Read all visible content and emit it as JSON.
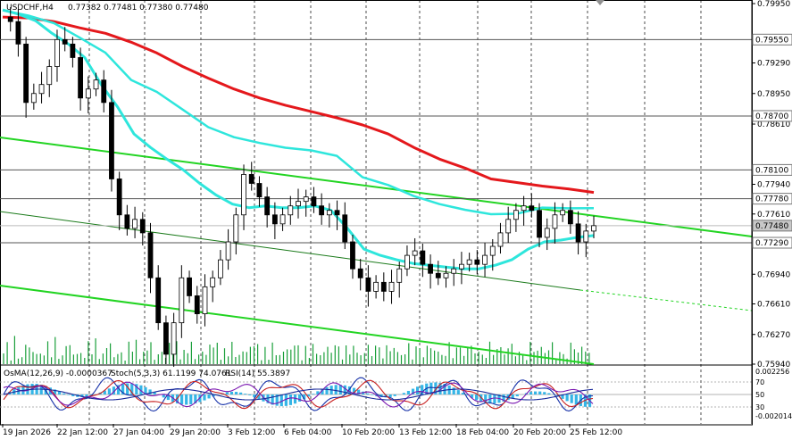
{
  "header": {
    "symbol_label": "USDCHF,H4",
    "ohlc_label": "0.77382 0.77481 0.77380 0.77480"
  },
  "indicator_header": {
    "osma_label": "OsMA(12,26,9) -0.0000367",
    "stoch_label": "Stoch(5,3,3) 61.1199 74.0761",
    "rsi_label": "RSI(14) 55.3897"
  },
  "colors": {
    "candle": "#000000",
    "ma_red": "#e4181c",
    "ma_teal": "#2ee6dc",
    "channel_green": "#22d422",
    "level_line": "#555555",
    "volume": "#1a9f3a",
    "osma_hist": "#35b5e6",
    "stoch_main": "#1530a8",
    "stoch_signal": "#c82020",
    "rsi": "#7a16b0",
    "price_tag_bg": "#c8c8c8"
  },
  "chart_data": {
    "type": "line",
    "symbol": "USDCHF",
    "timeframe": "H4",
    "ylim": [
      0.7594,
      0.7999
    ],
    "price_axis_ticks": [
      "0.79950",
      "0.79290",
      "0.78950",
      "0.78610",
      "0.77940",
      "0.77610",
      "0.76940",
      "0.76610",
      "0.76270",
      "0.75940"
    ],
    "x_tick_labels": [
      "19 Jan 2026",
      "22 Jan 12:00",
      "27 Jan 04:00",
      "29 Jan 20:00",
      "3 Feb 12:00",
      "6 Feb 04:00",
      "10 Feb 20:00",
      "13 Feb 12:00",
      "18 Feb 04:00",
      "20 Feb 20:00",
      "25 Feb 12:00"
    ],
    "levels": [
      {
        "label": "0.79550",
        "value": 0.7955
      },
      {
        "label": "0.78700",
        "value": 0.787
      },
      {
        "label": "0.78100",
        "value": 0.781
      },
      {
        "label": "0.77780",
        "value": 0.7778
      },
      {
        "label": "0.77290",
        "value": 0.7729
      }
    ],
    "current_price": {
      "label": "0.77480",
      "value": 0.7748
    },
    "ohlc": {
      "open": 0.77382,
      "high": 0.77481,
      "low": 0.7738,
      "close": 0.7748
    },
    "close_series": [
      0.798,
      0.7975,
      0.795,
      0.7885,
      0.7895,
      0.7905,
      0.7925,
      0.7955,
      0.795,
      0.7935,
      0.789,
      0.79,
      0.791,
      0.7885,
      0.78,
      0.776,
      0.7745,
      0.7755,
      0.774,
      0.769,
      0.764,
      0.7605,
      0.764,
      0.769,
      0.767,
      0.765,
      0.768,
      0.769,
      0.771,
      0.773,
      0.776,
      0.7805,
      0.7795,
      0.778,
      0.776,
      0.775,
      0.776,
      0.777,
      0.7775,
      0.778,
      0.777,
      0.776,
      0.7765,
      0.776,
      0.773,
      0.77,
      0.769,
      0.7675,
      0.7685,
      0.7675,
      0.7685,
      0.77,
      0.7715,
      0.772,
      0.7705,
      0.7695,
      0.769,
      0.7695,
      0.77,
      0.7705,
      0.771,
      0.7705,
      0.7715,
      0.7725,
      0.774,
      0.7755,
      0.7765,
      0.777,
      0.7765,
      0.7735,
      0.7745,
      0.776,
      0.7765,
      0.775,
      0.773,
      0.7742,
      0.7748
    ],
    "ma_fast": [
      0.7988,
      0.7983,
      0.7976,
      0.7962,
      0.795,
      0.7935,
      0.7905,
      0.788,
      0.785,
      0.7835,
      0.7822,
      0.781,
      0.7795,
      0.7782,
      0.7772,
      0.7768,
      0.777,
      0.7768,
      0.7768,
      0.777,
      0.7765,
      0.7745,
      0.7722,
      0.7715,
      0.771,
      0.7706,
      0.7704,
      0.7702,
      0.77,
      0.77,
      0.7704,
      0.771,
      0.7722,
      0.773,
      0.7732,
      0.7735,
      0.7737
    ],
    "ma_slow": [
      0.798,
      0.7979,
      0.7975,
      0.7968,
      0.7962,
      0.7952,
      0.794,
      0.7925,
      0.7912,
      0.79,
      0.789,
      0.7882,
      0.7875,
      0.7868,
      0.786,
      0.785,
      0.7835,
      0.7822,
      0.7812,
      0.78,
      0.7796,
      0.7792,
      0.7789,
      0.7785
    ],
    "stoch_levels": [
      "70",
      "50",
      "30"
    ],
    "osma_axis": [
      "0.002256",
      "-0.002014"
    ]
  }
}
